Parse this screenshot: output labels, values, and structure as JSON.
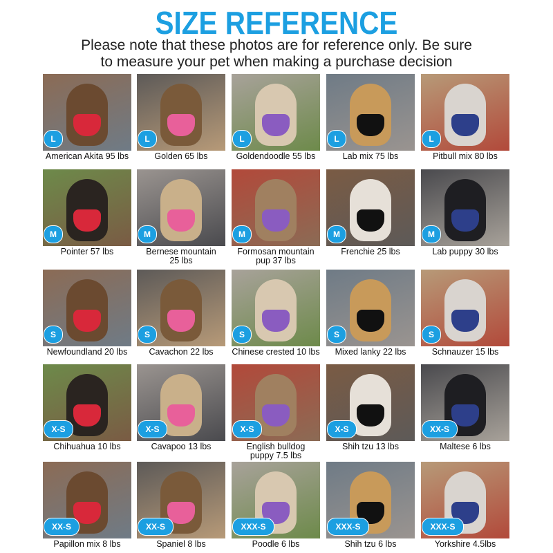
{
  "header": {
    "title": "SIZE REFERENCE",
    "subtitle": [
      "Please note that these photos are for reference only. Be sure",
      "to measure your pet when making a purchase decision"
    ]
  },
  "grid": [
    {
      "size": "L",
      "caption": [
        "American Akita 95 lbs"
      ]
    },
    {
      "size": "L",
      "caption": [
        "Golden 65 lbs"
      ]
    },
    {
      "size": "L",
      "caption": [
        "Goldendoodle 55 lbs"
      ]
    },
    {
      "size": "L",
      "caption": [
        "Lab mix 75 lbs"
      ]
    },
    {
      "size": "L",
      "caption": [
        "Pitbull mix 80 lbs"
      ]
    },
    {
      "size": "M",
      "caption": [
        "Pointer 57 lbs"
      ]
    },
    {
      "size": "M",
      "caption": [
        "Bernese mountain",
        "25 lbs"
      ]
    },
    {
      "size": "M",
      "caption": [
        "Formosan mountain",
        "pup 37 lbs"
      ]
    },
    {
      "size": "M",
      "caption": [
        "Frenchie 25 lbs"
      ]
    },
    {
      "size": "M",
      "caption": [
        "Lab puppy 30 lbs"
      ]
    },
    {
      "size": "S",
      "caption": [
        "Newfoundland 20 lbs"
      ]
    },
    {
      "size": "S",
      "caption": [
        "Cavachon 22 lbs"
      ]
    },
    {
      "size": "S",
      "caption": [
        "Chinese crested 10 lbs"
      ]
    },
    {
      "size": "S",
      "caption": [
        "Mixed lanky 22 lbs"
      ]
    },
    {
      "size": "S",
      "caption": [
        "Schnauzer 15 lbs"
      ]
    },
    {
      "size": "X-S",
      "caption": [
        "Chihuahua 10 lbs"
      ]
    },
    {
      "size": "X-S",
      "caption": [
        "Cavapoo 13 lbs"
      ]
    },
    {
      "size": "X-S",
      "caption": [
        "English bulldog",
        "puppy 7.5 lbs"
      ]
    },
    {
      "size": "X-S",
      "caption": [
        "Shih tzu 13 lbs"
      ]
    },
    {
      "size": "XX-S",
      "caption": [
        "Maltese 6 lbs"
      ]
    },
    {
      "size": "XX-S",
      "caption": [
        "Papillon mix 8 lbs"
      ]
    },
    {
      "size": "XX-S",
      "caption": [
        "Spaniel 8 lbs"
      ]
    },
    {
      "size": "XXX-S",
      "caption": [
        "Poodle 6 lbs"
      ]
    },
    {
      "size": "XXX-S",
      "caption": [
        "Shih tzu 6 lbs"
      ]
    },
    {
      "size": "XXX-S",
      "caption": [
        "Yorkshire 4.5lbs"
      ]
    }
  ]
}
